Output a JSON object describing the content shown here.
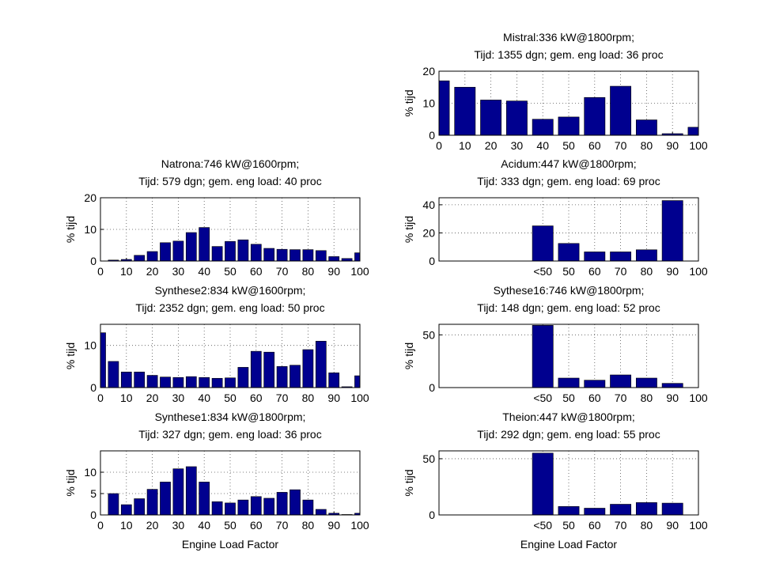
{
  "chart_data": [
    {
      "type": "bar",
      "title": "Mistral:336 kW@1800rpm;",
      "subtitle": "Tijd: 1355 dgn; gem. eng load: 36 proc",
      "ylabel": "% tijd",
      "x": [
        0,
        10,
        20,
        30,
        40,
        50,
        60,
        70,
        80,
        90,
        100
      ],
      "values": [
        17,
        15,
        11,
        10.7,
        5,
        5.7,
        11.8,
        15.3,
        4.8,
        0.5,
        2.5
      ],
      "xlim": [
        0,
        100
      ],
      "ylim": [
        0,
        20
      ],
      "xticks": [
        0,
        10,
        20,
        30,
        40,
        50,
        60,
        70,
        80,
        90,
        100
      ],
      "yticks": [
        0,
        10,
        20
      ],
      "color": "#00008f",
      "grid": true
    },
    {
      "type": "bar",
      "title": "Natrona:746 kW@1600rpm;",
      "subtitle": "Tijd: 579 dgn; gem. eng load: 40 proc",
      "ylabel": "% tijd",
      "x": [
        5,
        10,
        15,
        20,
        25,
        30,
        35,
        40,
        45,
        50,
        55,
        60,
        65,
        70,
        75,
        80,
        85,
        90,
        95,
        100
      ],
      "values": [
        0.3,
        0.5,
        1.8,
        3,
        5.8,
        6.3,
        9,
        10.6,
        4.6,
        6.2,
        6.7,
        5.3,
        4,
        3.7,
        3.6,
        3.6,
        3.3,
        1.4,
        0.8,
        2.6
      ],
      "xlim": [
        0,
        100
      ],
      "ylim": [
        0,
        20
      ],
      "xticks": [
        0,
        10,
        20,
        30,
        40,
        50,
        60,
        70,
        80,
        90,
        100
      ],
      "yticks": [
        0,
        10,
        20
      ],
      "color": "#00008f",
      "grid": true
    },
    {
      "type": "bar",
      "title": "Acidum:447 kW@1800rpm;",
      "subtitle": "Tijd: 333 dgn; gem. eng load: 69 proc",
      "ylabel": "% tijd",
      "x": [
        40,
        50,
        60,
        70,
        80,
        90
      ],
      "values": [
        25,
        12.5,
        6.5,
        6.5,
        8,
        43
      ],
      "xlim": [
        0,
        100
      ],
      "ylim": [
        0,
        45
      ],
      "xticks": [
        {
          "value": 40,
          "label": "<50"
        },
        50,
        60,
        70,
        80,
        90,
        100
      ],
      "yticks": [
        0,
        20,
        40
      ],
      "color": "#00008f",
      "grid": true
    },
    {
      "type": "bar",
      "title": "Synthese2:834 kW@1600rpm;",
      "subtitle": "Tijd: 2352 dgn; gem. eng load: 50 proc",
      "ylabel": "% tijd",
      "x": [
        0,
        5,
        10,
        15,
        20,
        25,
        30,
        35,
        40,
        45,
        50,
        55,
        60,
        65,
        70,
        75,
        80,
        85,
        90,
        95,
        100
      ],
      "values": [
        13,
        6.2,
        3.7,
        3.7,
        2.9,
        2.5,
        2.4,
        2.6,
        2.4,
        2.2,
        2.3,
        4.8,
        8.6,
        8.4,
        5,
        5.3,
        9,
        11,
        3.5,
        0.2,
        2.8
      ],
      "xlim": [
        0,
        100
      ],
      "ylim": [
        0,
        15
      ],
      "xticks": [
        0,
        10,
        20,
        30,
        40,
        50,
        60,
        70,
        80,
        90,
        100
      ],
      "yticks": [
        0,
        10
      ],
      "color": "#00008f",
      "grid": true
    },
    {
      "type": "bar",
      "title": "Sythese16:746 kW@1800rpm;",
      "subtitle": "Tijd: 148 dgn; gem. eng load: 52 proc",
      "ylabel": "% tijd",
      "x": [
        40,
        50,
        60,
        70,
        80,
        90
      ],
      "values": [
        59,
        9,
        7,
        12,
        9,
        4
      ],
      "xlim": [
        0,
        100
      ],
      "ylim": [
        0,
        60
      ],
      "xticks": [
        {
          "value": 40,
          "label": "<50"
        },
        50,
        60,
        70,
        80,
        90,
        100
      ],
      "yticks": [
        0,
        50
      ],
      "color": "#00008f",
      "grid": true
    },
    {
      "type": "bar",
      "title": "Synthese1:834 kW@1800rpm;",
      "subtitle": "Tijd: 327 dgn; gem. eng load: 36 proc",
      "ylabel": "% tijd",
      "xlabel": "Engine Load Factor",
      "x": [
        5,
        10,
        15,
        20,
        25,
        30,
        35,
        40,
        45,
        50,
        55,
        60,
        65,
        70,
        75,
        80,
        85,
        90,
        95,
        100
      ],
      "values": [
        5,
        2.4,
        3.8,
        6,
        7.7,
        10.8,
        11.3,
        7.7,
        3.1,
        2.8,
        3.5,
        4.3,
        3.9,
        5.3,
        5.9,
        3.5,
        1.3,
        0.4,
        0.1,
        0.4
      ],
      "xlim": [
        0,
        100
      ],
      "ylim": [
        0,
        15
      ],
      "xticks": [
        0,
        10,
        20,
        30,
        40,
        50,
        60,
        70,
        80,
        90,
        100
      ],
      "yticks": [
        0,
        5,
        10
      ],
      "color": "#00008f",
      "grid": true
    },
    {
      "type": "bar",
      "title": "Theion:447 kW@1800rpm;",
      "subtitle": "Tijd: 292 dgn; gem. eng load: 55 proc",
      "ylabel": "% tijd",
      "xlabel": "Engine Load Factor",
      "x": [
        40,
        50,
        60,
        70,
        80,
        90
      ],
      "values": [
        55,
        7.5,
        6,
        9.5,
        11,
        10.5
      ],
      "xlim": [
        0,
        100
      ],
      "ylim": [
        0,
        57
      ],
      "xticks": [
        {
          "value": 40,
          "label": "<50"
        },
        50,
        60,
        70,
        80,
        90,
        100
      ],
      "yticks": [
        0,
        50
      ],
      "color": "#00008f",
      "grid": true
    }
  ]
}
